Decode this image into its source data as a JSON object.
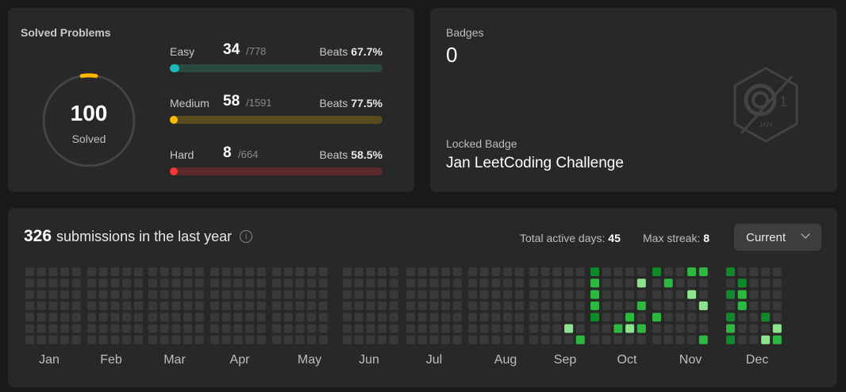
{
  "solved": {
    "title": "Solved Problems",
    "total": "100",
    "total_label": "Solved",
    "difficulties": [
      {
        "name": "Easy",
        "solved": "34",
        "total": "/778",
        "beats_label": "Beats",
        "beats": "67.7%",
        "solved_n": 34,
        "total_n": 778,
        "color": "#1cbaba",
        "track": "#2a4a3e"
      },
      {
        "name": "Medium",
        "solved": "58",
        "total": "/1591",
        "beats_label": "Beats",
        "beats": "77.5%",
        "solved_n": 58,
        "total_n": 1591,
        "color": "#ffb700",
        "track": "#5a4a20"
      },
      {
        "name": "Hard",
        "solved": "8",
        "total": "/664",
        "beats_label": "Beats",
        "beats": "58.5%",
        "solved_n": 8,
        "total_n": 664,
        "color": "#f63737",
        "track": "#5a2a28"
      }
    ]
  },
  "badges": {
    "label": "Badges",
    "count": "0",
    "locked_label": "Locked Badge",
    "locked_name": "Jan LeetCoding Challenge",
    "icon": "jan-badge-icon"
  },
  "submissions": {
    "count": "326",
    "text": "submissions in the last year",
    "active_days_label": "Total active days:",
    "active_days": "45",
    "max_streak_label": "Max streak:",
    "max_streak": "8",
    "period": "Current",
    "months": [
      "Jan",
      "Feb",
      "Mar",
      "Apr",
      "May",
      "Jun",
      "Jul",
      "Aug",
      "Sep",
      "Oct",
      "Nov",
      "Dec"
    ],
    "colors": {
      "empty": "#393939",
      "l1": "#8ee48e",
      "l2": "#2db840",
      "l3": "#0f8a2a"
    }
  }
}
